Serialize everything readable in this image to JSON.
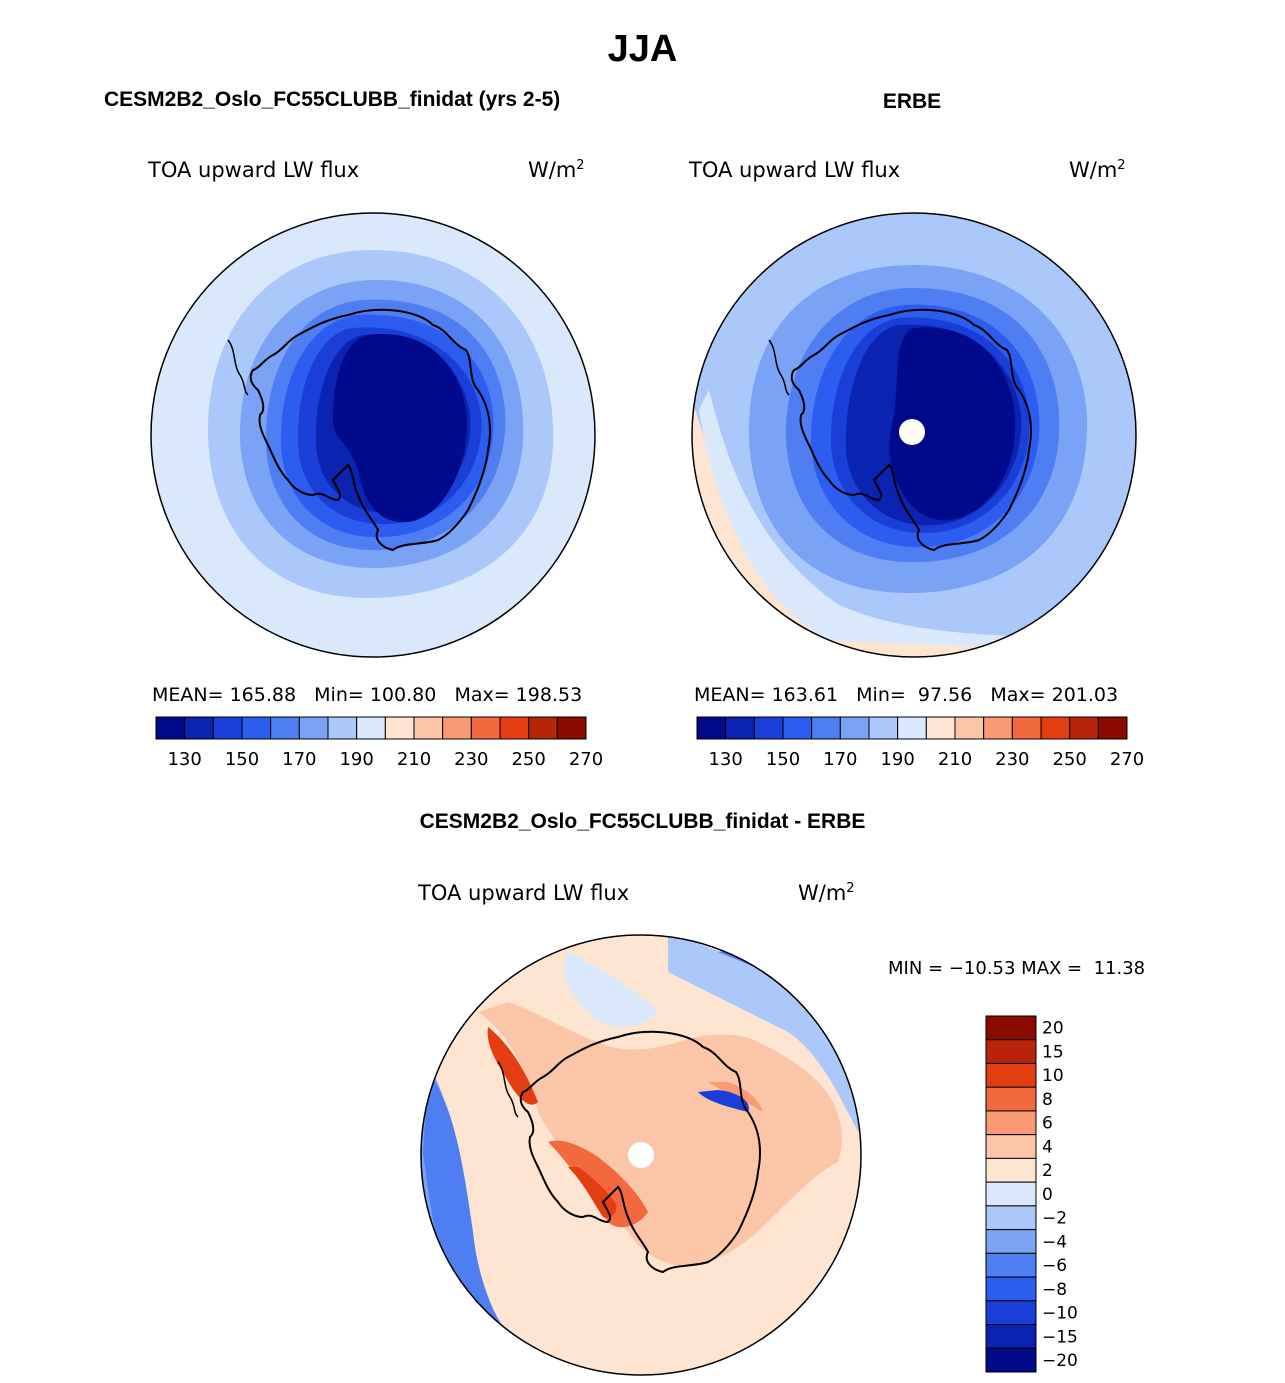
{
  "page": {
    "season_title": "JJA",
    "model_title": "CESM2B2_Oslo_FC55CLUBB_finidat (yrs 2-5)",
    "obs_title": "ERBE",
    "diff_title": "CESM2B2_Oslo_FC55CLUBB_finidat - ERBE"
  },
  "panels": {
    "model": {
      "variable": "TOA upward LW flux",
      "units": "W/m",
      "units_exp": "2",
      "stats": "MEAN= 165.88   Min= 100.80   Max= 198.53"
    },
    "obs": {
      "variable": "TOA upward LW flux",
      "units": "W/m",
      "units_exp": "2",
      "stats": "MEAN= 163.61   Min=  97.56   Max= 201.03"
    },
    "diff": {
      "variable": "TOA upward LW flux",
      "units": "W/m",
      "units_exp": "2",
      "stats": "MIN = −10.53 MAX =  11.38"
    }
  },
  "colorbars": {
    "abs_colors": [
      "#000a8a",
      "#0a23b0",
      "#1a3ed8",
      "#2c5cf0",
      "#4e7ef2",
      "#7aa2f5",
      "#aac8fa",
      "#dae8fc",
      "#fde5d2",
      "#fbc6a8",
      "#f99a74",
      "#f3693f",
      "#e33d12",
      "#b8240a",
      "#8a0a00"
    ],
    "abs_labels": [
      "130",
      "150",
      "170",
      "190",
      "210",
      "230",
      "250",
      "270"
    ],
    "diff_colors": [
      "#8a0a00",
      "#b8240a",
      "#e33d12",
      "#f3693f",
      "#f99a74",
      "#fbc6a8",
      "#fde5d2",
      "#dae8fc",
      "#aac8fa",
      "#7aa2f5",
      "#4e7ef2",
      "#2c5cf0",
      "#1a3ed8",
      "#0a23b0",
      "#000a8a"
    ],
    "diff_labels": [
      "20",
      "15",
      "10",
      "8",
      "6",
      "4",
      "2",
      "0",
      "−2",
      "−4",
      "−6",
      "−8",
      "−10",
      "−15",
      "−20"
    ]
  },
  "chart_data": [
    {
      "type": "heatmap",
      "projection": "south-polar-stereographic",
      "title": "CESM2B2_Oslo_FC55CLUBB_finidat (yrs 2-5)",
      "variable": "TOA upward LW flux",
      "units": "W/m2",
      "mean": 165.88,
      "min": 100.8,
      "max": 198.53,
      "contour_levels": [
        130,
        140,
        150,
        160,
        170,
        180,
        190,
        200,
        210,
        220,
        230,
        240,
        250,
        260,
        270
      ]
    },
    {
      "type": "heatmap",
      "projection": "south-polar-stereographic",
      "title": "ERBE",
      "variable": "TOA upward LW flux",
      "units": "W/m2",
      "mean": 163.61,
      "min": 97.56,
      "max": 201.03,
      "contour_levels": [
        130,
        140,
        150,
        160,
        170,
        180,
        190,
        200,
        210,
        220,
        230,
        240,
        250,
        260,
        270
      ]
    },
    {
      "type": "heatmap",
      "projection": "south-polar-stereographic",
      "title": "CESM2B2_Oslo_FC55CLUBB_finidat - ERBE",
      "variable": "TOA upward LW flux",
      "units": "W/m2",
      "min": -10.53,
      "max": 11.38,
      "contour_levels": [
        -20,
        -15,
        -10,
        -8,
        -6,
        -4,
        -2,
        0,
        2,
        4,
        6,
        8,
        10,
        15,
        20
      ]
    }
  ]
}
